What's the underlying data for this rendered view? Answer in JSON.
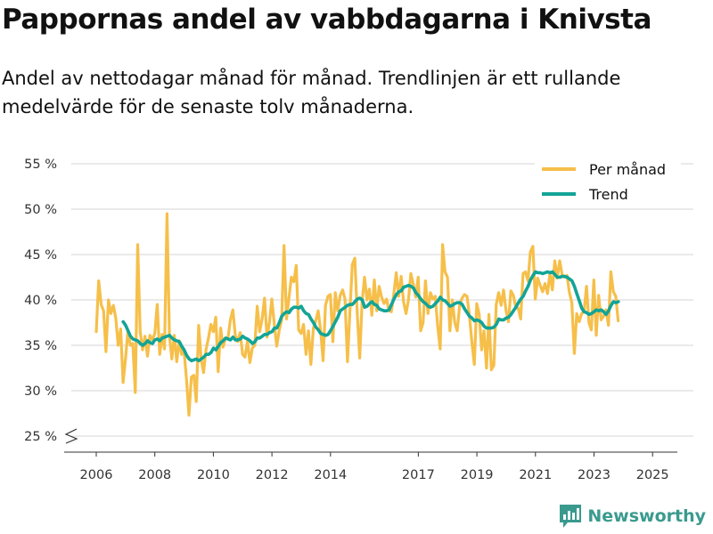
{
  "title": "Pappornas andel av vabbdagarna i Knivsta",
  "subtitle": "Andel av nettodagar månad för månad. Trendlinjen är ett rullande medelvärde för de senaste tolv månaderna.",
  "brand": "Newsworthy",
  "colors": {
    "monthly": "#f6bf4a",
    "trend": "#13a496",
    "grid": "#dddddd",
    "brand": "#3a9a8e"
  },
  "chart_data": {
    "type": "line",
    "title": "Pappornas andel av vabbdagarna i Knivsta",
    "xlabel": "",
    "ylabel": "",
    "x_range": [
      2006,
      2025.42
    ],
    "ylim": [
      25,
      55
    ],
    "y_ticks": [
      25,
      30,
      35,
      40,
      45,
      50,
      55
    ],
    "y_tick_labels": [
      "25 %",
      "30 %",
      "35 %",
      "40 %",
      "45 %",
      "50 %",
      "55 %"
    ],
    "x_ticks": [
      2006,
      2008,
      2010,
      2012,
      2014,
      2017,
      2019,
      2021,
      2023,
      2025
    ],
    "x_tick_labels": [
      "2006",
      "2008",
      "2010",
      "2012",
      "2014",
      "2017",
      "2019",
      "2021",
      "2023",
      "2025"
    ],
    "legend": {
      "position": "top-right",
      "entries": [
        "Per månad",
        "Trend"
      ]
    },
    "series": [
      {
        "name": "Per månad",
        "start": 2006,
        "step": 0.0833,
        "values": [
          36.5,
          42.1,
          39.5,
          38.8,
          34.3,
          40.0,
          38.5,
          39.4,
          38.0,
          35.0,
          36.8,
          30.9,
          33.5,
          36.6,
          35.0,
          35.2,
          29.8,
          46.1,
          36.5,
          34.5,
          36.0,
          33.8,
          36.1,
          35.6,
          36.3,
          39.5,
          34.0,
          36.2,
          34.6,
          49.5,
          36.1,
          33.5,
          36.1,
          33.2,
          35.5,
          34.0,
          34.4,
          31.2,
          27.3,
          31.5,
          31.7,
          28.8,
          37.2,
          33.5,
          32.0,
          34.5,
          35.8,
          37.3,
          36.5,
          38.1,
          32.1,
          36.9,
          34.8,
          35.8,
          35.8,
          37.8,
          38.9,
          36.1,
          35.4,
          36.4,
          34.0,
          33.7,
          35.5,
          33.1,
          34.7,
          35.0,
          39.3,
          36.5,
          37.9,
          40.2,
          35.9,
          37.5,
          40.1,
          37.3,
          34.9,
          36.6,
          37.8,
          46.0,
          37.9,
          40.2,
          42.5,
          42.0,
          43.8,
          36.7,
          36.3,
          37.3,
          34.0,
          36.6,
          32.9,
          36.9,
          37.7,
          38.8,
          36.6,
          33.3,
          39.4,
          40.4,
          40.6,
          35.4,
          40.8,
          38.8,
          40.5,
          41.1,
          40.1,
          33.2,
          38.7,
          43.9,
          44.6,
          38.6,
          33.6,
          39.8,
          42.5,
          40.0,
          41.2,
          38.3,
          42.2,
          38.8,
          41.5,
          40.3,
          39.6,
          40.1,
          38.8,
          38.7,
          40.7,
          43.0,
          40.4,
          42.6,
          39.8,
          38.5,
          40.0,
          42.9,
          41.7,
          40.3,
          42.5,
          36.6,
          37.5,
          42.1,
          38.5,
          40.8,
          40.1,
          40.4,
          37.1,
          34.6,
          46.1,
          43.1,
          42.5,
          36.6,
          40.0,
          37.5,
          36.6,
          39.5,
          40.2,
          40.6,
          40.4,
          38.3,
          35.4,
          32.9,
          39.6,
          38.4,
          34.5,
          36.6,
          32.5,
          38.4,
          32.3,
          32.8,
          39.5,
          40.8,
          39.4,
          41.1,
          38.8,
          37.6,
          41.0,
          40.5,
          39.2,
          39.1,
          37.9,
          42.9,
          43.1,
          42.1,
          45.3,
          45.9,
          40.1,
          42.4,
          41.6,
          40.9,
          41.8,
          40.7,
          42.9,
          41.1,
          44.3,
          42.4,
          44.3,
          42.8,
          42.5,
          42.7,
          40.8,
          39.7,
          34.1,
          38.5,
          37.6,
          38.5,
          38.7,
          41.5,
          37.5,
          36.7,
          42.2,
          36.1,
          40.5,
          37.8,
          38.2,
          38.9,
          37.2,
          43.1,
          40.9,
          40.4,
          37.7
        ]
      },
      {
        "name": "Trend",
        "start": 2006.92,
        "step": 0.0833,
        "values": [
          37.6,
          37.2,
          36.6,
          36.0,
          35.7,
          35.6,
          35.5,
          35.2,
          35.0,
          35.2,
          35.5,
          35.3,
          35.2,
          35.6,
          35.7,
          35.5,
          35.8,
          35.9,
          36.0,
          36.1,
          35.8,
          35.6,
          35.5,
          35.4,
          34.9,
          34.5,
          33.9,
          33.5,
          33.3,
          33.4,
          33.5,
          33.3,
          33.5,
          33.7,
          34.0,
          34.0,
          34.2,
          34.7,
          34.5,
          34.9,
          35.3,
          35.5,
          35.8,
          35.7,
          35.6,
          35.9,
          35.6,
          35.6,
          35.7,
          36.0,
          35.8,
          35.7,
          35.5,
          35.2,
          35.4,
          35.8,
          35.8,
          36.0,
          36.2,
          36.2,
          36.4,
          36.5,
          36.9,
          36.9,
          37.5,
          38.2,
          38.5,
          38.7,
          38.6,
          39.0,
          39.2,
          39.2,
          39.1,
          39.3,
          38.8,
          38.5,
          38.4,
          37.9,
          37.5,
          37.0,
          36.7,
          36.3,
          36.2,
          36.1,
          36.2,
          36.6,
          37.1,
          37.6,
          38.1,
          38.8,
          39.0,
          39.2,
          39.4,
          39.5,
          39.5,
          39.8,
          40.1,
          40.2,
          40.0,
          39.2,
          39.3,
          39.6,
          39.8,
          39.5,
          39.4,
          39.0,
          38.9,
          38.8,
          38.8,
          38.9,
          39.5,
          40.1,
          40.6,
          40.9,
          41.0,
          41.4,
          41.5,
          41.6,
          41.5,
          41.3,
          40.8,
          40.5,
          40.1,
          39.8,
          39.6,
          39.3,
          39.2,
          39.3,
          39.6,
          39.9,
          40.3,
          40.0,
          39.9,
          39.6,
          39.3,
          39.4,
          39.6,
          39.7,
          39.7,
          39.5,
          39.0,
          38.6,
          38.2,
          38.0,
          37.7,
          37.8,
          37.7,
          37.5,
          37.1,
          36.9,
          36.9,
          36.9,
          37.0,
          37.3,
          37.9,
          37.8,
          37.8,
          38.0,
          38.1,
          38.4,
          38.8,
          39.2,
          39.7,
          40.1,
          40.4,
          41.0,
          41.5,
          42.2,
          42.7,
          43.1,
          43.0,
          43.0,
          42.9,
          43.0,
          43.1,
          43.0,
          43.1,
          42.8,
          42.5,
          42.5,
          42.6,
          42.6,
          42.5,
          42.3,
          42.1,
          41.5,
          40.7,
          39.9,
          39.1,
          38.7,
          38.6,
          38.4,
          38.5,
          38.7,
          38.9,
          38.8,
          38.9,
          38.7,
          38.4,
          38.8,
          39.4,
          39.8,
          39.7,
          39.8
        ]
      }
    ]
  }
}
